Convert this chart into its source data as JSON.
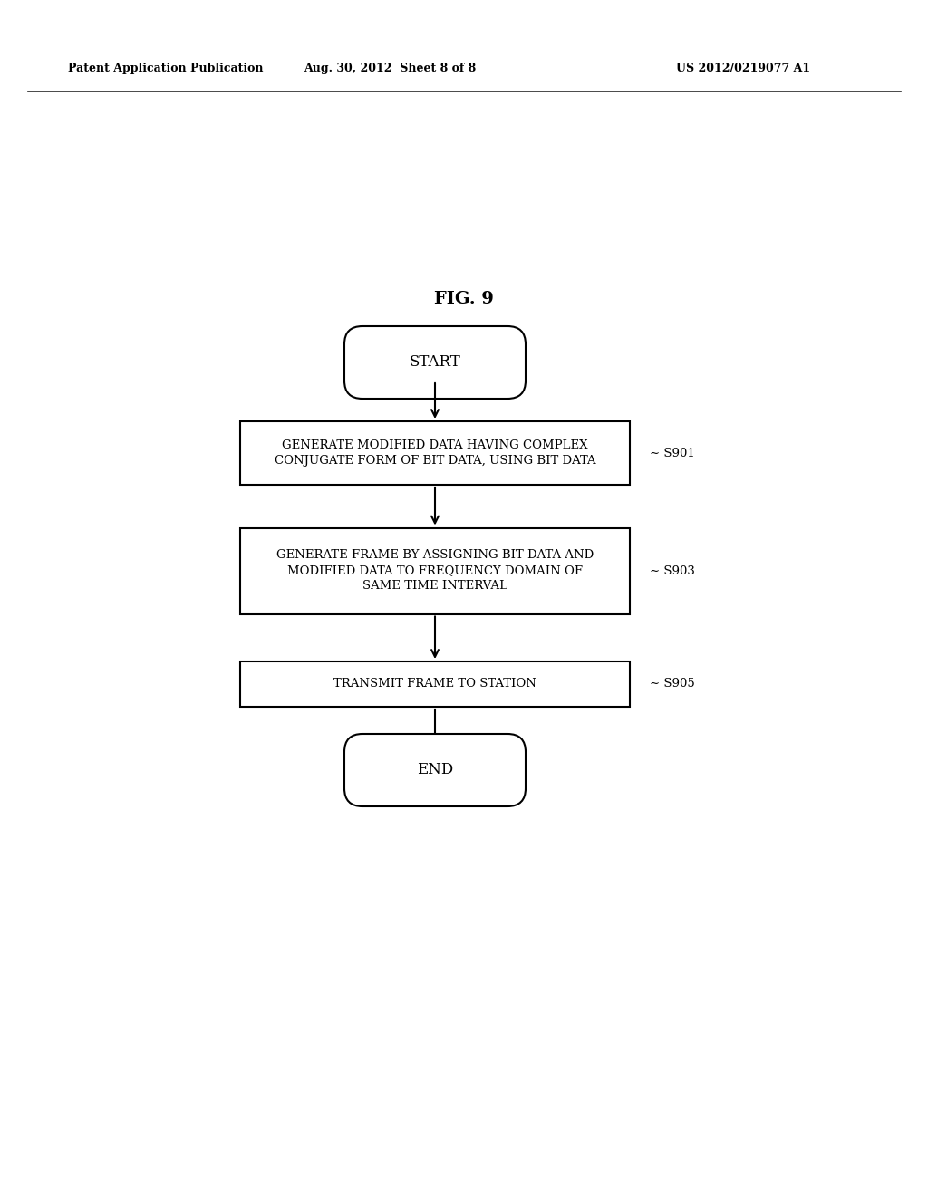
{
  "fig_label": "FIG. 9",
  "header_left": "Patent Application Publication",
  "header_center": "Aug. 30, 2012  Sheet 8 of 8",
  "header_right": "US 2012/0219077 A1",
  "background_color": "#ffffff",
  "start_text": "START",
  "end_text": "END",
  "s901_text": "GENERATE MODIFIED DATA HAVING COMPLEX\nCONJUGATE FORM OF BIT DATA, USING BIT DATA",
  "s901_label": "S901",
  "s903_text": "GENERATE FRAME BY ASSIGNING BIT DATA AND\nMODIFIED DATA TO FREQUENCY DOMAIN OF\nSAME TIME INTERVAL",
  "s903_label": "S903",
  "s905_text": "TRANSMIT FRAME TO STATION",
  "s905_label": "S905"
}
